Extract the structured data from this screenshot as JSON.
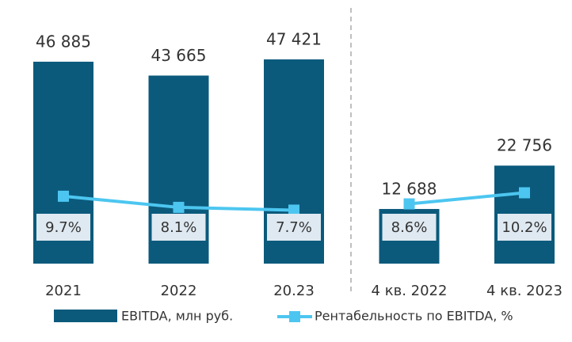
{
  "chart_data": [
    {
      "type": "bar_line",
      "categories": [
        "2021",
        "2022",
        "20.23"
      ],
      "series": [
        {
          "name": "EBITDA, млн руб.",
          "color": "#0b5a7c",
          "values": [
            46885,
            43665,
            47421
          ],
          "value_labels": [
            "46 885",
            "43 665",
            "47 421"
          ]
        },
        {
          "name": "Рентабельность по EBITDA, %",
          "color": "#4cc6f0",
          "values": [
            9.7,
            8.1,
            7.7
          ],
          "value_labels": [
            "9.7%",
            "8.1%",
            "7.7%"
          ],
          "axis": "y2"
        }
      ],
      "ylim": [
        0,
        50000
      ],
      "y2lim": [
        0,
        31
      ]
    },
    {
      "type": "bar_line",
      "categories": [
        "4 кв. 2022",
        "4 кв. 2023"
      ],
      "series": [
        {
          "color": "#0b5a7c",
          "values": [
            12688,
            22756
          ],
          "value_labels": [
            "12 688",
            "22 756"
          ]
        },
        {
          "color": "#4cc6f0",
          "values": [
            8.6,
            10.2
          ],
          "value_labels": [
            "8.6%",
            "10.2%"
          ],
          "axis": "y2"
        }
      ],
      "ylim": [
        0,
        50000
      ],
      "y2lim": [
        0,
        31
      ]
    }
  ]
}
